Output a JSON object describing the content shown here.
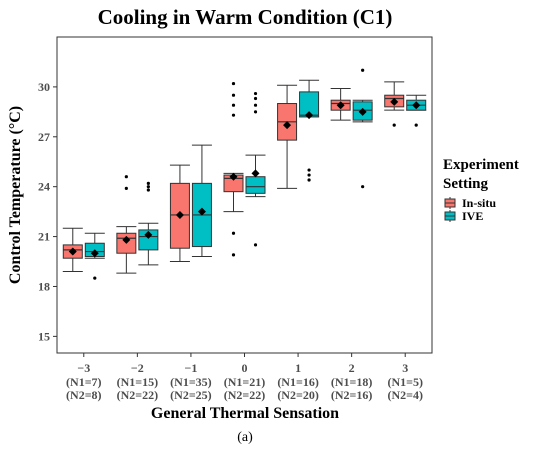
{
  "chart_data": {
    "type": "boxplot",
    "title": "Cooling in Warm Condition (C1)",
    "xlabel": "General Thermal Sensation",
    "ylabel": "Control Temperature (°C)",
    "ylim": [
      14,
      33
    ],
    "y_ticks": [
      15,
      18,
      21,
      24,
      27,
      30
    ],
    "categories": [
      {
        "value": "−3",
        "n1": "(N1=7)",
        "n2": "(N2=8)"
      },
      {
        "value": "−2",
        "n1": "(N1=15)",
        "n2": "(N2=22)"
      },
      {
        "value": "−1",
        "n1": "(N1=35)",
        "n2": "(N2=25)"
      },
      {
        "value": "0",
        "n1": "(N1=21)",
        "n2": "(N2=22)"
      },
      {
        "value": "1",
        "n1": "(N1=16)",
        "n2": "(N2=20)"
      },
      {
        "value": "2",
        "n1": "(N1=18)",
        "n2": "(N2=16)"
      },
      {
        "value": "3",
        "n1": "(N1=5)",
        "n2": "(N2=4)"
      }
    ],
    "legend": {
      "title_line1": "Experiment",
      "title_line2": "Setting",
      "placement": "right"
    },
    "grid": false,
    "series": [
      {
        "name": "In-situ",
        "color": "#f8766d",
        "boxes": [
          {
            "whisker_low": 18.9,
            "q1": 19.7,
            "median": 20.2,
            "q3": 20.5,
            "whisker_high": 21.5,
            "mean": 20.1,
            "outliers": []
          },
          {
            "whisker_low": 18.8,
            "q1": 20.0,
            "median": 20.9,
            "q3": 21.2,
            "whisker_high": 21.6,
            "mean": 20.8,
            "outliers": [
              23.9,
              24.6
            ]
          },
          {
            "whisker_low": 19.5,
            "q1": 20.3,
            "median": 22.3,
            "q3": 24.2,
            "whisker_high": 25.3,
            "mean": 22.3,
            "outliers": []
          },
          {
            "whisker_low": 22.5,
            "q1": 23.7,
            "median": 24.5,
            "q3": 24.7,
            "whisker_high": 24.8,
            "mean": 24.6,
            "outliers": [
              19.9,
              21.2,
              28.3,
              28.9,
              29.5,
              30.2
            ]
          },
          {
            "whisker_low": 23.9,
            "q1": 26.8,
            "median": 27.9,
            "q3": 29.0,
            "whisker_high": 30.1,
            "mean": 27.7,
            "outliers": []
          },
          {
            "whisker_low": 28.0,
            "q1": 28.6,
            "median": 29.0,
            "q3": 29.2,
            "whisker_high": 29.9,
            "mean": 28.9,
            "outliers": []
          },
          {
            "whisker_low": 28.6,
            "q1": 28.8,
            "median": 29.3,
            "q3": 29.5,
            "whisker_high": 30.3,
            "mean": 29.1,
            "outliers": [
              27.7
            ]
          }
        ]
      },
      {
        "name": "IVE",
        "color": "#00bfc4",
        "boxes": [
          {
            "whisker_low": 19.7,
            "q1": 19.8,
            "median": 20.1,
            "q3": 20.6,
            "whisker_high": 21.2,
            "mean": 20.0,
            "outliers": [
              18.5
            ]
          },
          {
            "whisker_low": 19.3,
            "q1": 20.2,
            "median": 21.0,
            "q3": 21.4,
            "whisker_high": 21.8,
            "mean": 21.1,
            "outliers": [
              23.8,
              24.0,
              24.2
            ]
          },
          {
            "whisker_low": 19.8,
            "q1": 20.4,
            "median": 22.3,
            "q3": 24.2,
            "whisker_high": 26.5,
            "mean": 22.5,
            "outliers": []
          },
          {
            "whisker_low": 23.4,
            "q1": 23.6,
            "median": 24.0,
            "q3": 24.6,
            "whisker_high": 25.9,
            "mean": 24.8,
            "outliers": [
              20.5,
              28.5,
              28.9,
              29.3,
              29.6
            ]
          },
          {
            "whisker_low": 28.2,
            "q1": 28.2,
            "median": 28.3,
            "q3": 29.7,
            "whisker_high": 30.4,
            "mean": 28.3,
            "outliers": [
              24.4,
              24.7,
              25.0
            ]
          },
          {
            "whisker_low": 27.9,
            "q1": 28.0,
            "median": 28.6,
            "q3": 29.1,
            "whisker_high": 29.2,
            "mean": 28.5,
            "outliers": [
              24.0,
              31.0
            ]
          },
          {
            "whisker_low": 28.6,
            "q1": 28.6,
            "median": 28.9,
            "q3": 29.2,
            "whisker_high": 29.5,
            "mean": 28.9,
            "outliers": [
              27.7
            ]
          }
        ]
      }
    ]
  },
  "caption": "(a)"
}
